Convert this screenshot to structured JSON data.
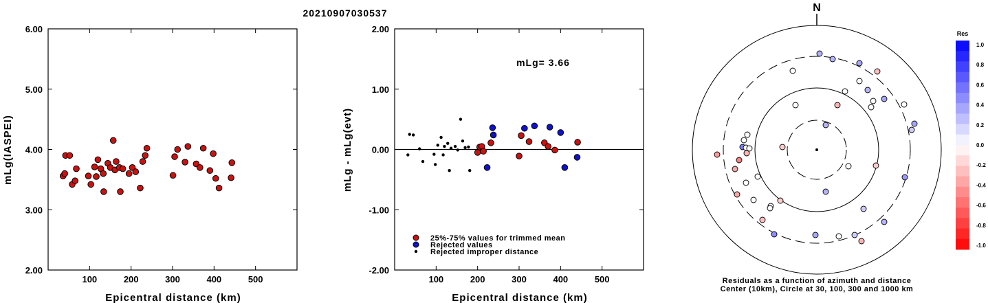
{
  "title": "20210907030537",
  "chart_data": [
    {
      "type": "scatter",
      "name": "magnitude-vs-distance",
      "xlabel": "Epicentral distance (km)",
      "ylabel": "mLg(IASPEI)",
      "xlim": [
        0,
        600
      ],
      "ylim": [
        2.0,
        6.0
      ],
      "xticks": [
        "100",
        "200",
        "300",
        "400",
        "500"
      ],
      "yticks": [
        "2.00",
        "3.00",
        "4.00",
        "5.00",
        "6.00"
      ],
      "color": "#cc1111",
      "points": [
        [
          36,
          3.56
        ],
        [
          40,
          3.6
        ],
        [
          42,
          3.9
        ],
        [
          52,
          3.9
        ],
        [
          58,
          3.42
        ],
        [
          65,
          3.48
        ],
        [
          68,
          3.68
        ],
        [
          97,
          3.56
        ],
        [
          103,
          3.42
        ],
        [
          112,
          3.71
        ],
        [
          116,
          3.55
        ],
        [
          120,
          3.83
        ],
        [
          127,
          3.68
        ],
        [
          133,
          3.6
        ],
        [
          134,
          3.3
        ],
        [
          144,
          3.77
        ],
        [
          150,
          3.7
        ],
        [
          157,
          4.15
        ],
        [
          161,
          3.66
        ],
        [
          164,
          3.8
        ],
        [
          172,
          3.7
        ],
        [
          174,
          3.3
        ],
        [
          180,
          3.68
        ],
        [
          195,
          3.6
        ],
        [
          203,
          3.7
        ],
        [
          211,
          3.63
        ],
        [
          222,
          3.36
        ],
        [
          228,
          3.8
        ],
        [
          234,
          3.9
        ],
        [
          238,
          4.02
        ],
        [
          301,
          3.57
        ],
        [
          305,
          3.88
        ],
        [
          312,
          4.0
        ],
        [
          330,
          3.79
        ],
        [
          337,
          4.05
        ],
        [
          357,
          3.76
        ],
        [
          366,
          3.7
        ],
        [
          374,
          4.02
        ],
        [
          390,
          3.65
        ],
        [
          398,
          3.93
        ],
        [
          404,
          3.52
        ],
        [
          412,
          3.36
        ],
        [
          441,
          3.53
        ],
        [
          443,
          3.78
        ]
      ]
    },
    {
      "type": "scatter",
      "name": "residuals-vs-distance",
      "xlabel": "Epicentral distance (km)",
      "ylabel": "mLg - mLg(evt)",
      "xlim": [
        0,
        600
      ],
      "ylim": [
        -2.0,
        2.0
      ],
      "xticks": [
        "100",
        "200",
        "300",
        "400",
        "500"
      ],
      "yticks": [
        "-2.00",
        "-1.00",
        "0.00",
        "1.00",
        "2.00"
      ],
      "annotation": "mLg= 3.66",
      "legend": [
        {
          "label": "25%-75% values for trimmed mean",
          "color": "#cc1111"
        },
        {
          "label": "Rejected values",
          "color": "#1111cc"
        },
        {
          "label": "Rejected improper distance",
          "color": "#000000"
        }
      ],
      "trimmed": [
        [
          200,
          -0.05
        ],
        [
          205,
          0.04
        ],
        [
          210,
          0.05
        ],
        [
          214,
          -0.03
        ],
        [
          232,
          0.11
        ],
        [
          300,
          -0.11
        ],
        [
          305,
          0.23
        ],
        [
          324,
          0.13
        ],
        [
          361,
          0.11
        ],
        [
          370,
          0.05
        ],
        [
          386,
          -0.01
        ],
        [
          441,
          0.12
        ]
      ],
      "rejected": [
        [
          223,
          -0.3
        ],
        [
          236,
          0.36
        ],
        [
          238,
          0.24
        ],
        [
          313,
          0.35
        ],
        [
          337,
          0.39
        ],
        [
          374,
          0.37
        ],
        [
          400,
          0.28
        ],
        [
          410,
          -0.3
        ],
        [
          440,
          -0.13
        ]
      ],
      "improper": [
        [
          32,
          -0.09
        ],
        [
          36,
          0.25
        ],
        [
          45,
          0.24
        ],
        [
          60,
          0.01
        ],
        [
          68,
          -0.2
        ],
        [
          95,
          -0.08
        ],
        [
          98,
          -0.25
        ],
        [
          104,
          0.07
        ],
        [
          112,
          0.2
        ],
        [
          117,
          -0.09
        ],
        [
          120,
          0.05
        ],
        [
          128,
          0.1
        ],
        [
          132,
          -0.35
        ],
        [
          136,
          0.02
        ],
        [
          146,
          0.05
        ],
        [
          152,
          -0.01
        ],
        [
          159,
          0.5
        ],
        [
          164,
          0.14
        ],
        [
          170,
          0.03
        ],
        [
          178,
          0.04
        ],
        [
          181,
          -0.35
        ]
      ]
    },
    {
      "type": "scatter",
      "name": "azimuth-distance-residuals",
      "north_label": "N",
      "caption_line1": "Residuals as a function of azimuth and distance",
      "caption_line2": "Center (10km), Circle at 30, 100, 300 and 1000 km",
      "colorbar": {
        "title": "Res",
        "ticks": [
          "1.0",
          "0.8",
          "0.6",
          "0.4",
          "0.2",
          "0.0",
          "-0.2",
          "-0.4",
          "-0.6",
          "-0.8",
          "-1.0"
        ],
        "positive_color": "#0000ff",
        "negative_color": "#ff0000"
      },
      "points": [
        [
          1192,
          78,
          0.3
        ],
        [
          1211,
          86,
          0.3
        ],
        [
          1250,
          92,
          0.35
        ],
        [
          1276,
          104,
          -0.25
        ],
        [
          1153,
          103,
          0.0
        ],
        [
          1250,
          118,
          0.0
        ],
        [
          1262,
          131,
          0.3
        ],
        [
          1229,
          133,
          0.0
        ],
        [
          1286,
          144,
          0.35
        ],
        [
          1270,
          147,
          0.0
        ],
        [
          1157,
          153,
          0.0
        ],
        [
          1218,
          153,
          -0.3
        ],
        [
          1267,
          156,
          0.0
        ],
        [
          1315,
          152,
          0.0
        ],
        [
          1201,
          182,
          0.3
        ],
        [
          1330,
          180,
          0.35
        ],
        [
          1326,
          189,
          0.2
        ],
        [
          1087,
          196,
          0.0
        ],
        [
          1082,
          204,
          0.0
        ],
        [
          1080,
          214,
          0.5
        ],
        [
          1085,
          215,
          0.0
        ],
        [
          1090,
          216,
          0.0
        ],
        [
          1138,
          214,
          -0.2
        ],
        [
          1086,
          223,
          -0.3
        ],
        [
          1043,
          225,
          -0.4
        ],
        [
          1075,
          233,
          -0.5
        ],
        [
          1069,
          246,
          -0.35
        ],
        [
          1234,
          242,
          0.0
        ],
        [
          1274,
          241,
          -0.2
        ],
        [
          1102,
          257,
          0.0
        ],
        [
          1316,
          258,
          0.4
        ],
        [
          1085,
          266,
          0.0
        ],
        [
          1072,
          283,
          -0.35
        ],
        [
          1096,
          291,
          0.0
        ],
        [
          1135,
          292,
          -0.2
        ],
        [
          1201,
          279,
          0.3
        ],
        [
          1121,
          300,
          0.0
        ],
        [
          1120,
          303,
          0.0
        ],
        [
          1256,
          304,
          0.2
        ],
        [
          1109,
          320,
          -0.25
        ],
        [
          1286,
          323,
          0.3
        ],
        [
          1126,
          341,
          0.45
        ],
        [
          1186,
          342,
          0.35
        ],
        [
          1243,
          342,
          0.2
        ],
        [
          1220,
          344,
          0.0
        ],
        [
          1253,
          351,
          -0.3
        ]
      ]
    }
  ]
}
